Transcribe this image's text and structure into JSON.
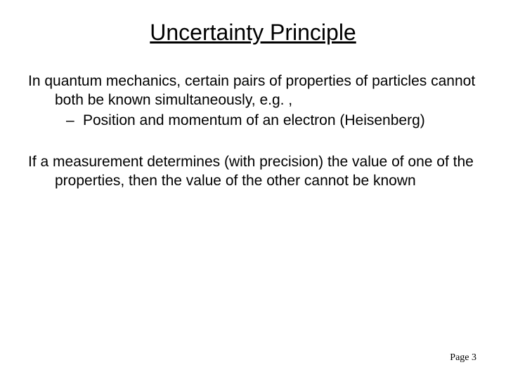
{
  "slide": {
    "title": "Uncertainty Principle",
    "paragraph1_main": "In quantum mechanics, certain pairs of properties of particles cannot both be known simultaneously, e.g. ,",
    "paragraph1_bullet": "Position and momentum of an electron (Heisenberg)",
    "paragraph2": "If a measurement determines (with precision) the value of one of the properties, then the value of the other cannot be known",
    "page_label": "Page 3"
  },
  "style": {
    "background_color": "#ffffff",
    "text_color": "#000000",
    "title_fontsize": 32,
    "body_fontsize": 21,
    "page_fontsize": 14,
    "font_family": "Comic Sans MS"
  }
}
